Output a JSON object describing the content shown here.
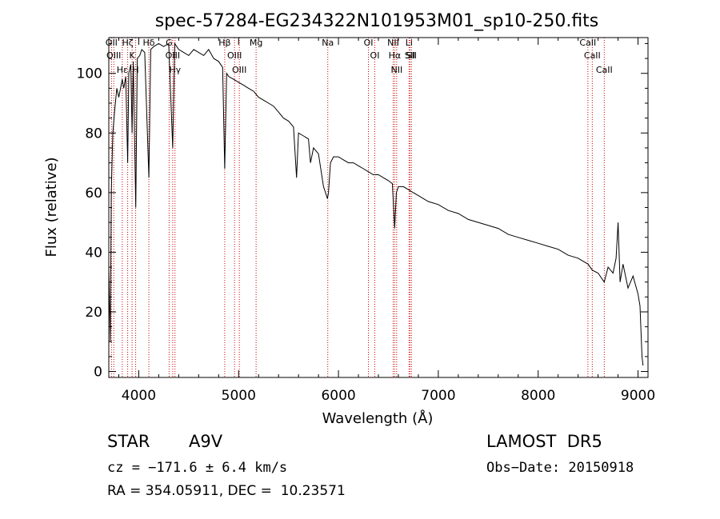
{
  "chart_data": {
    "type": "line",
    "title": "spec-57284-EG234322N101953M01_sp10-250.fits",
    "xlabel": "Wavelength (Å)",
    "ylabel": "Flux (relative)",
    "xlim": [
      3700,
      9100
    ],
    "ylim": [
      -2,
      112
    ],
    "xticks": [
      4000,
      5000,
      6000,
      7000,
      8000,
      9000
    ],
    "yticks": [
      0,
      20,
      40,
      60,
      80,
      100
    ],
    "grid": false,
    "line_color": "#000000",
    "marker_line_color": "#cc0000",
    "series": [
      {
        "points": [
          [
            3700,
            35
          ],
          [
            3715,
            10
          ],
          [
            3725,
            60
          ],
          [
            3740,
            80
          ],
          [
            3760,
            88
          ],
          [
            3780,
            95
          ],
          [
            3800,
            92
          ],
          [
            3835,
            98
          ],
          [
            3850,
            95
          ],
          [
            3870,
            99
          ],
          [
            3889,
            70
          ],
          [
            3900,
            100
          ],
          [
            3920,
            103
          ],
          [
            3933,
            80
          ],
          [
            3945,
            104
          ],
          [
            3970,
            55
          ],
          [
            3985,
            105
          ],
          [
            4010,
            106
          ],
          [
            4030,
            108
          ],
          [
            4060,
            107
          ],
          [
            4101,
            65
          ],
          [
            4120,
            108
          ],
          [
            4150,
            109
          ],
          [
            4200,
            110
          ],
          [
            4250,
            109
          ],
          [
            4300,
            110
          ],
          [
            4340,
            75
          ],
          [
            4360,
            110
          ],
          [
            4400,
            108
          ],
          [
            4450,
            107
          ],
          [
            4500,
            106
          ],
          [
            4550,
            108
          ],
          [
            4600,
            107
          ],
          [
            4650,
            106
          ],
          [
            4700,
            108
          ],
          [
            4750,
            105
          ],
          [
            4800,
            104
          ],
          [
            4840,
            102
          ],
          [
            4861,
            68
          ],
          [
            4880,
            100
          ],
          [
            4900,
            99
          ],
          [
            4950,
            98
          ],
          [
            5000,
            97
          ],
          [
            5050,
            96
          ],
          [
            5100,
            95
          ],
          [
            5150,
            94
          ],
          [
            5200,
            92
          ],
          [
            5250,
            91
          ],
          [
            5300,
            90
          ],
          [
            5350,
            89
          ],
          [
            5400,
            87
          ],
          [
            5450,
            85
          ],
          [
            5500,
            84
          ],
          [
            5550,
            82
          ],
          [
            5580,
            65
          ],
          [
            5600,
            80
          ],
          [
            5650,
            79
          ],
          [
            5700,
            78
          ],
          [
            5720,
            70
          ],
          [
            5750,
            75
          ],
          [
            5800,
            73
          ],
          [
            5850,
            62
          ],
          [
            5890,
            58
          ],
          [
            5900,
            60
          ],
          [
            5920,
            70
          ],
          [
            5950,
            72
          ],
          [
            6000,
            72
          ],
          [
            6050,
            71
          ],
          [
            6100,
            70
          ],
          [
            6150,
            70
          ],
          [
            6200,
            69
          ],
          [
            6250,
            68
          ],
          [
            6300,
            67
          ],
          [
            6350,
            66
          ],
          [
            6400,
            66
          ],
          [
            6450,
            65
          ],
          [
            6500,
            64
          ],
          [
            6540,
            63
          ],
          [
            6563,
            48
          ],
          [
            6580,
            60
          ],
          [
            6600,
            62
          ],
          [
            6650,
            62
          ],
          [
            6700,
            61
          ],
          [
            6750,
            60
          ],
          [
            6800,
            59
          ],
          [
            6900,
            57
          ],
          [
            7000,
            56
          ],
          [
            7100,
            54
          ],
          [
            7200,
            53
          ],
          [
            7300,
            51
          ],
          [
            7400,
            50
          ],
          [
            7500,
            49
          ],
          [
            7600,
            48
          ],
          [
            7700,
            46
          ],
          [
            7800,
            45
          ],
          [
            7900,
            44
          ],
          [
            8000,
            43
          ],
          [
            8100,
            42
          ],
          [
            8200,
            41
          ],
          [
            8300,
            39
          ],
          [
            8400,
            38
          ],
          [
            8500,
            36
          ],
          [
            8542,
            34
          ],
          [
            8600,
            33
          ],
          [
            8662,
            30
          ],
          [
            8700,
            35
          ],
          [
            8750,
            33
          ],
          [
            8780,
            38
          ],
          [
            8800,
            50
          ],
          [
            8820,
            30
          ],
          [
            8850,
            36
          ],
          [
            8900,
            28
          ],
          [
            8950,
            32
          ],
          [
            9000,
            26
          ],
          [
            9020,
            22
          ],
          [
            9040,
            5
          ],
          [
            9050,
            2
          ]
        ]
      }
    ],
    "line_markers": [
      {
        "wavelength": 3727,
        "label": "OII"
      },
      {
        "wavelength": 3750,
        "label": "OIII"
      },
      {
        "wavelength": 3835,
        "label": "Hε"
      },
      {
        "wavelength": 3889,
        "label": "Hζ"
      },
      {
        "wavelength": 3933,
        "label": "K"
      },
      {
        "wavelength": 3969,
        "label": "H"
      },
      {
        "wavelength": 4101,
        "label": "Hδ"
      },
      {
        "wavelength": 4304,
        "label": "G"
      },
      {
        "wavelength": 4340,
        "label": "OIII"
      },
      {
        "wavelength": 4363,
        "label": "Hγ"
      },
      {
        "wavelength": 4861,
        "label": "Hβ"
      },
      {
        "wavelength": 4959,
        "label": "OIII"
      },
      {
        "wavelength": 5007,
        "label": "OIII"
      },
      {
        "wavelength": 5175,
        "label": "Mg"
      },
      {
        "wavelength": 5893,
        "label": "Na"
      },
      {
        "wavelength": 6300,
        "label": "OI"
      },
      {
        "wavelength": 6364,
        "label": "OI"
      },
      {
        "wavelength": 6548,
        "label": "NII"
      },
      {
        "wavelength": 6563,
        "label": "Hα"
      },
      {
        "wavelength": 6583,
        "label": "NII"
      },
      {
        "wavelength": 6707,
        "label": "Li"
      },
      {
        "wavelength": 6716,
        "label": "SII"
      },
      {
        "wavelength": 6731,
        "label": "SII"
      },
      {
        "wavelength": 8498,
        "label": "CaII"
      },
      {
        "wavelength": 8542,
        "label": "CaII"
      },
      {
        "wavelength": 8662,
        "label": "CaII"
      }
    ]
  },
  "info": {
    "class_label": "STAR",
    "subclass": "A9V",
    "survey": "LAMOST  DR5",
    "redshift": "cz = −171.6 ± 6.4 km/s",
    "obs_date": "Obs−Date: 20150918",
    "coords": "RA = 354.05911, DEC =  10.23571"
  }
}
